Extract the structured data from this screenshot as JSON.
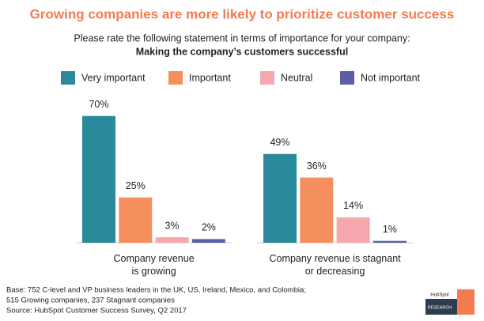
{
  "chart_data": {
    "type": "bar",
    "title": "Growing companies are more likely to prioritize customer success",
    "subtitle": "Please rate the following statement in terms of importance for your company:",
    "question": "Making the company’s customers successful",
    "categories": [
      "Company revenue is growing",
      "Company revenue is stagnant or decreasing"
    ],
    "series": [
      {
        "name": "Very important",
        "color": "#2a8a9b",
        "values": [
          70,
          49
        ],
        "value_labels": [
          "70%",
          "49%"
        ]
      },
      {
        "name": "Important",
        "color": "#f68f5e",
        "values": [
          25,
          36
        ],
        "value_labels": [
          "25%",
          "36%"
        ]
      },
      {
        "name": "Neutral",
        "color": "#f5a8ad",
        "values": [
          3,
          14
        ],
        "value_labels": [
          "3%",
          "14%"
        ]
      },
      {
        "name": "Not important",
        "color": "#5a5ea5",
        "values": [
          2,
          1
        ],
        "value_labels": [
          "2%",
          "1%"
        ]
      }
    ],
    "legend": "top",
    "notes": [
      "Base: 752 C-level and VP business leaders in the UK, US, Ireland, Mexico, and Colombia;",
      "515 Growing companies, 237 Stagnant companies",
      "Source: HubSpot Customer Success Survey, Q2 2017"
    ],
    "brand": [
      "HubSpot",
      "RESEARCH"
    ]
  }
}
